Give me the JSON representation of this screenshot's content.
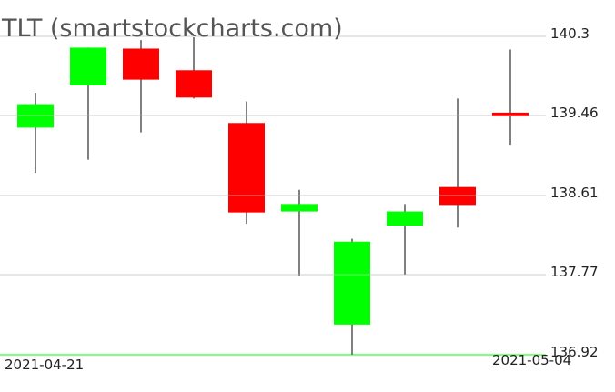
{
  "chart_data": {
    "type": "candlestick",
    "title": "TLT (smartstockcharts.com)",
    "ylim": [
      136.92,
      140.3
    ],
    "y_ticks": [
      "140.3",
      "139.46",
      "138.61",
      "137.77",
      "136.92"
    ],
    "x_tick_labels": [
      "2021-04-21",
      "2021-05-04"
    ],
    "grid": true,
    "colors": {
      "up": "#00ff00",
      "down": "#ff0000",
      "wick": "#000000",
      "grid": "#cccccc",
      "min_line": "#00ff00",
      "top_label": "#cccccc"
    },
    "candles": [
      {
        "open": 139.33,
        "high": 139.7,
        "low": 138.85,
        "close": 139.58
      },
      {
        "open": 139.78,
        "high": 140.18,
        "low": 138.99,
        "close": 140.18
      },
      {
        "open": 140.17,
        "high": 140.26,
        "low": 139.28,
        "close": 139.84
      },
      {
        "open": 139.94,
        "high": 140.29,
        "low": 139.64,
        "close": 139.65
      },
      {
        "open": 139.38,
        "high": 139.61,
        "low": 138.31,
        "close": 138.43
      },
      {
        "open": 138.44,
        "high": 138.67,
        "low": 137.75,
        "close": 138.52
      },
      {
        "open": 137.24,
        "high": 138.15,
        "low": 136.92,
        "close": 138.12
      },
      {
        "open": 138.29,
        "high": 138.52,
        "low": 137.77,
        "close": 138.44
      },
      {
        "open": 138.7,
        "high": 139.64,
        "low": 138.27,
        "close": 138.51
      },
      {
        "open": 139.49,
        "high": 140.16,
        "low": 139.15,
        "close": 139.45
      }
    ]
  }
}
